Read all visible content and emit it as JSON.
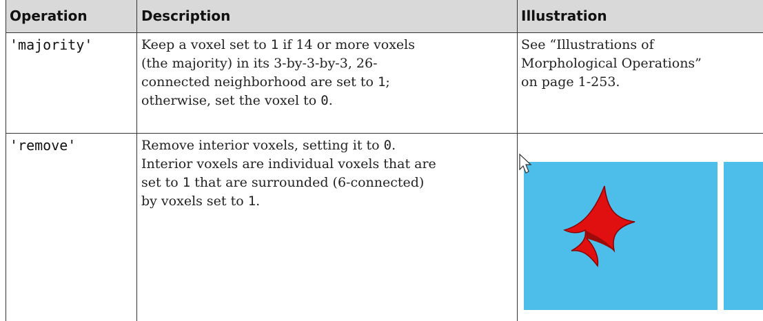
{
  "table": {
    "header": [
      "Operation",
      "Description",
      "Illustration"
    ],
    "rows": [
      {
        "operation": "'majority'",
        "description": [
          [
            "Keep a voxel set to ",
            "1",
            " if 14 or more voxels"
          ],
          [
            "(the majority) in its 3-by-3-by-3, 26-"
          ],
          [
            "connected neighborhood are set to ",
            "1",
            ";"
          ],
          [
            "otherwise, set the voxel to ",
            "0",
            "."
          ]
        ],
        "illustration": [
          "See “Illustrations of",
          "Morphological Operations”",
          "on page 1-253."
        ]
      },
      {
        "operation": "'remove'",
        "description": [
          [
            "Remove interior voxels, setting it to ",
            "0",
            "."
          ],
          [
            "Interior voxels are individual voxels that are"
          ],
          [
            "set to ",
            "1",
            " that are surrounded (6-connected)"
          ],
          [
            "by voxels set to ",
            "1",
            "."
          ]
        ]
      }
    ]
  }
}
